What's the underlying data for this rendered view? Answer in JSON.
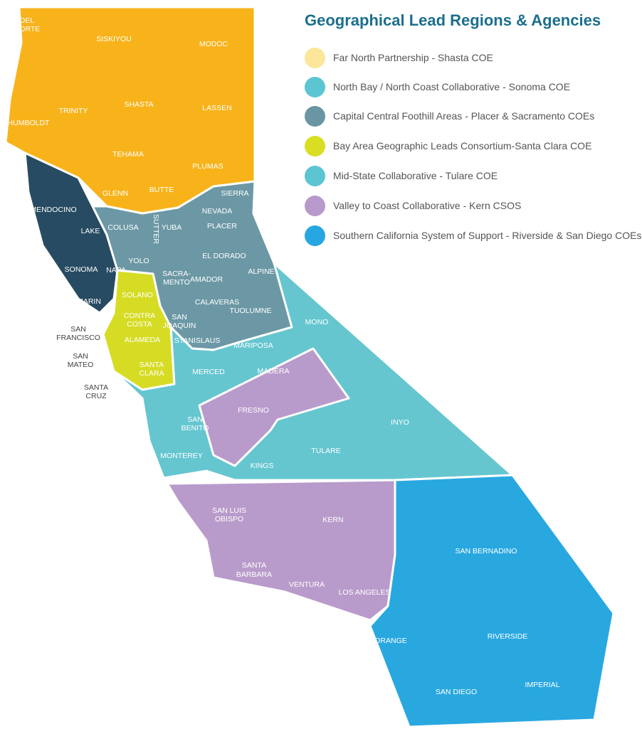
{
  "legend": {
    "title": "Geographical Lead Regions & Agencies",
    "items": [
      {
        "label": "Far North Partnership - Shasta COE",
        "color": "#FBE69A"
      },
      {
        "label": "North Bay / North Coast Collaborative - Sonoma COE",
        "color": "#5CC5D2"
      },
      {
        "label": "Capital Central Foothill Areas - Placer & Sacramento COEs",
        "color": "#6A95A3"
      },
      {
        "label": "Bay Area Geographic Leads Consortium-Santa Clara COE",
        "color": "#D9DE22"
      },
      {
        "label": "Mid-State Collaborative - Tulare COE",
        "color": "#5CC5D2"
      },
      {
        "label": "Valley to Coast Collaborative - Kern CSOS",
        "color": "#B79ACB"
      },
      {
        "label": "Southern California System of Support - Riverside & San Diego COEs",
        "color": "#27A7E1"
      }
    ]
  },
  "map_colors": {
    "far_north": "#F8B31B",
    "north_bay": "#274B62",
    "capital": "#6C98A5",
    "bay_area": "#D6DC24",
    "mid_state": "#65C6D0",
    "valley_coast": "#B99BCB",
    "socal": "#29A8E0"
  },
  "counties": [
    "DEL",
    "NORTE",
    "SISKIYOU",
    "MODOC",
    "HUMBOLDT",
    "TRINITY",
    "SHASTA",
    "LASSEN",
    "TEHAMA",
    "PLUMAS",
    "GLENN",
    "BUTTE",
    "SIERRA",
    "NEVADA",
    "MENDOCINO",
    "LAKE",
    "COLUSA",
    "SUTTER",
    "YUBA",
    "PLACER",
    "YOLO",
    "EL DORADO",
    "SONOMA",
    "NAPA",
    "SACRA-",
    "MENTO",
    "ALPINE",
    "AMADOR",
    "SOLANO",
    "CALAVERAS",
    "MARIN",
    "CONTRA",
    "COSTA",
    "SAN",
    "JOAQUIN",
    "TUOLUMNE",
    "MONO",
    "SAN",
    "FRANCISCO",
    "ALAMEDA",
    "STANISLAUS",
    "MARIPOSA",
    "SAN",
    "MATEO",
    "SANTA",
    "CLARA",
    "MERCED",
    "MADERA",
    "SANTA",
    "CRUZ",
    "FRESNO",
    "INYO",
    "SAN",
    "BENITO",
    "TULARE",
    "KINGS",
    "MONTEREY",
    "SAN LUIS",
    "OBISPO",
    "KERN",
    "SAN BERNADINO",
    "SANTA",
    "BARBARA",
    "VENTURA",
    "LOS ANGELES",
    "RIVERSIDE",
    "ORANGE",
    "SAN DIEGO",
    "IMPERIAL"
  ]
}
